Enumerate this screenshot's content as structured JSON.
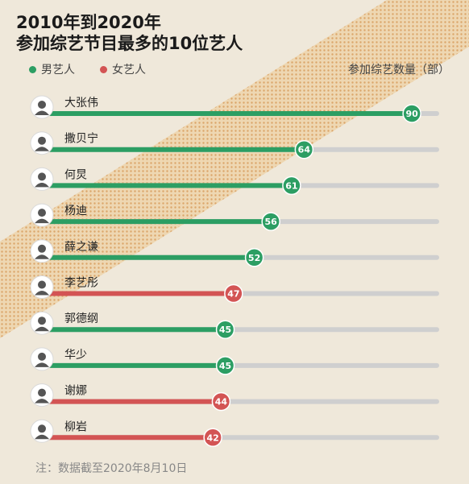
{
  "title_line1": "2010年到2020年",
  "title_line2": "参加综艺节目最多的10位艺人",
  "legend": {
    "male_label": "男艺人",
    "female_label": "女艺人"
  },
  "unit_label": "参加综艺数量（部）",
  "note": "注：数据截至2020年8月10日",
  "colors": {
    "male": "#2c9e63",
    "female": "#d35454",
    "track": "#cfcfcf",
    "background": "#efe8da",
    "stripe": "#e8c99a"
  },
  "chart_data": {
    "type": "bar",
    "orientation": "horizontal",
    "categories": [
      "大张伟",
      "撒贝宁",
      "何炅",
      "杨迪",
      "薛之谦",
      "李艺彤",
      "郭德纲",
      "华少",
      "谢娜",
      "柳岩"
    ],
    "values": [
      90,
      64,
      61,
      56,
      52,
      47,
      45,
      45,
      44,
      42
    ],
    "gender": [
      "male",
      "male",
      "male",
      "male",
      "male",
      "female",
      "male",
      "male",
      "female",
      "female"
    ],
    "value_labels": [
      "90",
      "64",
      "61",
      "56",
      "52",
      "47",
      "45",
      "45",
      "44",
      "42"
    ],
    "xlim": [
      0,
      96
    ],
    "grid": false
  }
}
